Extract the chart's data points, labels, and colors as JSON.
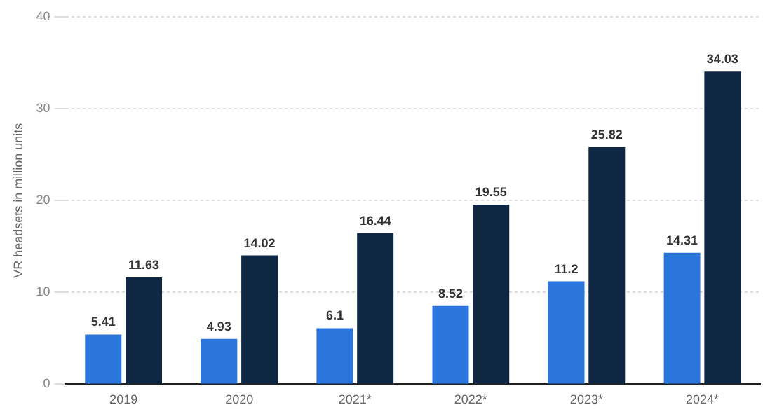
{
  "chart_data": {
    "type": "bar",
    "ylabel": "VR headsets in million units",
    "categories": [
      "2019",
      "2020",
      "2021*",
      "2022*",
      "2023*",
      "2024*"
    ],
    "series": [
      {
        "color": "#2a76dd",
        "values": [
          5.41,
          4.93,
          6.1,
          8.52,
          11.2,
          14.31
        ]
      },
      {
        "color": "#0f2742",
        "values": [
          11.63,
          14.02,
          16.44,
          19.55,
          25.82,
          34.03
        ]
      }
    ],
    "ylim": [
      0,
      40
    ],
    "yticks": [
      0,
      10,
      20,
      30,
      40
    ],
    "grid": "y",
    "data_labels": true,
    "legend": false
  }
}
